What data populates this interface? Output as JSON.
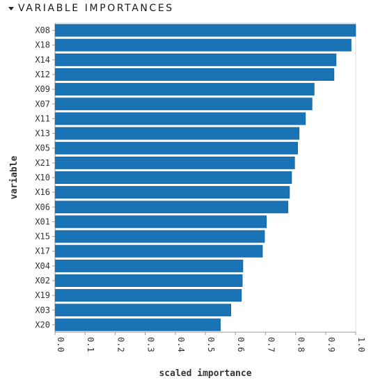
{
  "section": {
    "title": "VARIABLE IMPORTANCES",
    "caret_icon": "caret-down-icon"
  },
  "chart_data": {
    "type": "bar",
    "orientation": "horizontal",
    "categories": [
      "X08",
      "X18",
      "X14",
      "X12",
      "X09",
      "X07",
      "X11",
      "X13",
      "X05",
      "X21",
      "X10",
      "X16",
      "X06",
      "X01",
      "X15",
      "X17",
      "X04",
      "X02",
      "X19",
      "X03",
      "X20"
    ],
    "values": [
      1.0,
      0.985,
      0.935,
      0.928,
      0.862,
      0.855,
      0.833,
      0.812,
      0.807,
      0.797,
      0.787,
      0.78,
      0.775,
      0.703,
      0.697,
      0.69,
      0.625,
      0.623,
      0.62,
      0.585,
      0.55
    ],
    "xlabel": "scaled importance",
    "ylabel": "variable",
    "xlim": [
      0,
      1
    ],
    "xticks": [
      "0.0",
      "0.1",
      "0.2",
      "0.3",
      "0.4",
      "0.5",
      "0.6",
      "0.7",
      "0.8",
      "0.9",
      "1.0"
    ],
    "bar_color": "#1a73b5",
    "bar_edge_color": "#0b5a94",
    "grid": false,
    "legend": "none"
  }
}
